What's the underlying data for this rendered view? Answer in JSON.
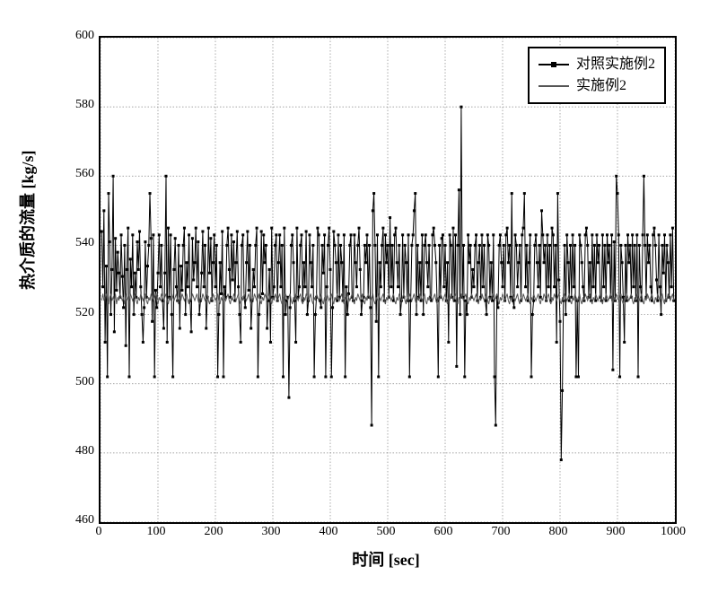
{
  "chart": {
    "type": "line",
    "xlabel": "时间 [sec]",
    "ylabel": "热介质的流量 [kg/s]",
    "xlim": [
      0,
      1000
    ],
    "ylim": [
      460,
      600
    ],
    "xticks": [
      0,
      100,
      200,
      300,
      400,
      500,
      600,
      700,
      800,
      900,
      1000
    ],
    "yticks": [
      460,
      480,
      500,
      520,
      540,
      560,
      580,
      600
    ],
    "background_color": "#ffffff",
    "grid_color": "#888888",
    "axis_color": "#000000",
    "label_fontsize": 18,
    "tick_fontsize": 14,
    "legend": {
      "position": "top-right",
      "border_color": "#000000",
      "items": [
        {
          "label": "对照实施例2",
          "marker": "square",
          "color": "#000000"
        },
        {
          "label": "实施例2",
          "marker": "none",
          "color": "#555555"
        }
      ]
    },
    "series": [
      {
        "name": "对照实施例2",
        "color": "#000000",
        "line_width": 1,
        "marker": "square",
        "marker_size": 3,
        "y_data": [
          544,
          528,
          550,
          512,
          534,
          502,
          555,
          541,
          520,
          533,
          560,
          515,
          542,
          527,
          538,
          532,
          525,
          543,
          531,
          522,
          540,
          511,
          533,
          545,
          502,
          536,
          528,
          543,
          520,
          532,
          525,
          541,
          533,
          544,
          528,
          520,
          512,
          522,
          541,
          525,
          534,
          540,
          555,
          542,
          518,
          543,
          502,
          527,
          522,
          532,
          543,
          528,
          540,
          524,
          516,
          532,
          560,
          512,
          545,
          525,
          543,
          520,
          502,
          533,
          542,
          528,
          524,
          540,
          516,
          534,
          527,
          540,
          545,
          520,
          535,
          528,
          543,
          524,
          515,
          542,
          530,
          535,
          545,
          528,
          541,
          520,
          524,
          532,
          544,
          528,
          540,
          516,
          525,
          545,
          532,
          542,
          524,
          535,
          543,
          528,
          540,
          502,
          520,
          535,
          526,
          544,
          502,
          528,
          525,
          540,
          545,
          533,
          525,
          543,
          530,
          541,
          524,
          535,
          544,
          528,
          520,
          512,
          540,
          543,
          525,
          522,
          535,
          544,
          527,
          540,
          516,
          524,
          533,
          528,
          540,
          545,
          502,
          520,
          525,
          544,
          526,
          543,
          535,
          540,
          516,
          524,
          533,
          512,
          545,
          525,
          528,
          540,
          543,
          524,
          535,
          543,
          528,
          540,
          502,
          545,
          520,
          524,
          525,
          496,
          522,
          540,
          543,
          535,
          524,
          512,
          545,
          525,
          528,
          540,
          543,
          524,
          535,
          528,
          544,
          520,
          524,
          543,
          535,
          528,
          540,
          502,
          520,
          525,
          545,
          543,
          524,
          522,
          540,
          532,
          543,
          502,
          528,
          540,
          545,
          533,
          502,
          522,
          544,
          540,
          535,
          524,
          543,
          525,
          540,
          535,
          524,
          543,
          502,
          528,
          520,
          526,
          540,
          543,
          525,
          524,
          543,
          535,
          528,
          540,
          545,
          533,
          520,
          524,
          525,
          540,
          535,
          543,
          525,
          540,
          522,
          488,
          550,
          555,
          540,
          518,
          543,
          502,
          535,
          528,
          540,
          545,
          524,
          543,
          535,
          540,
          525,
          548,
          528,
          540,
          524,
          543,
          545,
          535,
          528,
          540,
          520,
          524,
          543,
          525,
          540,
          535,
          524,
          543,
          502,
          524,
          540,
          543,
          550,
          555,
          520,
          540,
          525,
          535,
          524,
          543,
          520,
          540,
          543,
          535,
          528,
          540,
          525,
          524,
          543,
          545,
          540,
          535,
          524,
          502,
          540,
          525,
          542,
          543,
          528,
          540,
          524,
          535,
          512,
          543,
          540,
          525,
          545,
          524,
          543,
          505,
          540,
          556,
          520,
          580,
          525,
          540,
          502,
          524,
          520,
          543,
          535,
          540,
          525,
          533,
          528,
          540,
          543,
          524,
          535,
          540,
          525,
          543,
          528,
          540,
          524,
          520,
          543,
          540,
          525,
          535,
          524,
          543,
          502,
          488,
          525,
          522,
          540,
          543,
          535,
          528,
          540,
          524,
          543,
          545,
          535,
          540,
          525,
          555,
          524,
          522,
          543,
          540,
          528,
          535,
          540,
          524,
          543,
          545,
          555,
          528,
          540,
          524,
          535,
          543,
          502,
          520,
          524,
          540,
          543,
          535,
          528,
          540,
          525,
          550,
          543,
          535,
          540,
          524,
          543,
          528,
          540,
          524,
          545,
          543,
          528,
          540,
          512,
          555,
          530,
          518,
          478,
          498,
          524,
          540,
          520,
          543,
          535,
          524,
          540,
          525,
          543,
          528,
          540,
          502,
          524,
          502,
          543,
          540,
          535,
          528,
          524,
          543,
          545,
          540,
          525,
          535,
          524,
          543,
          528,
          540,
          524,
          543,
          535,
          540,
          525,
          524,
          543,
          528,
          540,
          524,
          543,
          535,
          540,
          525,
          543,
          504,
          541,
          524,
          560,
          555,
          543,
          502,
          540,
          535,
          525,
          512,
          540,
          524,
          543,
          535,
          540,
          525,
          543,
          528,
          540,
          524,
          543,
          502,
          540,
          528,
          524,
          543,
          560,
          540,
          525,
          543,
          535,
          540,
          528,
          524,
          543,
          545,
          540,
          530,
          524,
          543,
          528,
          520,
          540,
          532,
          543,
          524,
          540,
          535,
          525,
          543,
          528,
          545,
          524
        ],
        "x_start": 2,
        "x_step": 2
      },
      {
        "name": "实施例2",
        "color": "#555555",
        "line_width": 1,
        "marker": "none",
        "y_data": [
          524,
          526,
          524,
          525,
          526,
          524,
          523,
          525,
          526,
          524,
          525,
          524,
          526,
          523,
          525,
          524,
          526,
          525,
          524,
          525,
          523,
          526,
          524,
          525,
          524,
          526,
          525,
          524,
          525,
          526,
          524,
          523,
          525,
          524,
          526,
          525,
          524,
          525,
          526,
          524,
          523,
          525,
          524,
          526,
          525,
          524,
          525,
          526,
          524,
          523,
          525,
          524,
          526,
          525,
          524,
          525,
          526,
          524,
          523,
          525,
          524,
          526,
          525,
          524,
          525,
          526,
          524,
          523,
          525,
          524,
          526,
          525,
          524,
          525,
          526,
          524,
          523,
          525,
          524,
          526,
          525,
          524,
          525,
          526,
          524,
          523,
          525,
          524,
          526,
          525,
          524,
          525,
          526,
          524,
          523,
          525,
          524,
          526,
          525,
          524,
          525,
          526,
          524,
          523,
          525,
          524,
          526,
          525,
          524,
          525,
          526,
          524,
          523,
          525,
          524,
          526,
          525,
          524,
          525,
          526,
          524,
          523,
          525,
          524,
          526,
          525,
          524,
          525,
          526,
          524,
          523,
          525,
          524,
          526,
          525,
          524,
          525,
          526,
          524,
          523,
          525,
          524,
          526,
          525,
          524,
          525,
          526,
          524,
          523,
          525,
          524,
          526,
          525,
          524,
          525,
          526,
          524,
          523,
          525,
          524,
          526,
          525,
          524,
          525,
          526,
          524,
          523,
          525,
          524,
          526,
          525,
          524,
          525,
          526,
          524,
          523,
          525,
          524,
          526,
          525,
          524,
          525,
          526,
          524,
          523,
          525,
          524,
          526,
          525,
          524,
          525,
          526,
          524,
          523,
          525,
          524,
          526,
          525,
          524,
          525,
          526,
          524,
          523,
          525,
          524,
          526,
          525,
          524,
          525,
          526,
          524,
          523,
          525,
          524,
          526,
          525,
          524,
          525,
          526,
          524,
          523,
          525,
          524,
          526,
          525,
          524,
          525,
          526,
          524,
          523,
          525,
          524,
          526,
          525,
          524,
          525,
          526,
          524,
          523,
          525,
          524,
          526,
          525,
          524,
          525,
          526,
          524,
          523,
          525,
          524,
          526,
          525,
          524,
          525,
          526,
          524,
          523,
          525,
          524,
          526,
          525,
          524,
          525,
          526,
          524,
          523,
          525,
          524,
          526,
          525,
          524,
          525,
          526,
          524,
          523,
          525,
          524,
          526,
          525,
          524,
          525,
          526,
          524,
          523,
          525,
          524,
          526,
          525,
          524,
          525,
          526,
          524,
          523,
          525,
          524,
          526,
          525,
          524,
          525,
          526,
          524,
          523,
          525,
          524,
          526,
          525,
          524,
          525,
          526,
          524,
          523,
          525,
          524,
          526,
          525,
          524,
          525,
          526,
          524,
          523,
          525,
          524,
          526,
          525,
          524,
          525,
          526,
          524,
          523,
          525,
          524,
          526,
          525,
          524,
          525,
          526,
          524,
          523,
          525,
          524,
          526,
          525,
          524,
          525,
          526,
          524,
          523,
          525,
          524,
          526,
          525,
          524,
          525,
          526,
          524,
          523,
          525,
          524,
          526,
          525,
          524,
          525,
          526,
          524,
          523,
          525,
          524,
          526,
          525,
          524,
          525,
          526,
          524,
          523,
          525,
          524,
          526,
          525,
          524,
          525,
          526,
          524,
          523,
          525,
          524,
          526,
          525,
          524,
          525,
          526,
          524,
          523,
          525,
          524,
          526,
          525,
          524,
          525,
          526,
          524,
          523,
          525,
          524,
          526,
          525,
          524,
          525,
          526,
          524,
          523,
          525,
          524,
          526,
          525,
          524,
          525,
          526,
          524,
          523,
          525,
          524,
          526,
          525,
          524,
          525,
          526,
          524,
          523,
          525,
          524,
          526,
          525,
          524,
          525,
          526,
          524,
          523,
          525,
          524,
          526,
          525,
          524,
          525,
          526,
          524,
          523,
          525,
          524,
          526,
          525,
          524,
          525,
          526,
          524,
          523,
          525,
          524,
          526,
          525,
          524,
          525,
          526,
          524,
          523,
          525,
          524,
          526,
          525,
          524,
          525,
          526,
          524,
          523,
          525,
          524,
          526,
          525,
          524,
          525,
          526,
          524,
          523,
          525,
          524,
          526,
          525,
          524,
          525,
          526,
          524,
          523,
          525,
          524,
          526,
          525,
          524,
          525,
          526,
          524
        ],
        "x_start": 2,
        "x_step": 2
      }
    ]
  }
}
